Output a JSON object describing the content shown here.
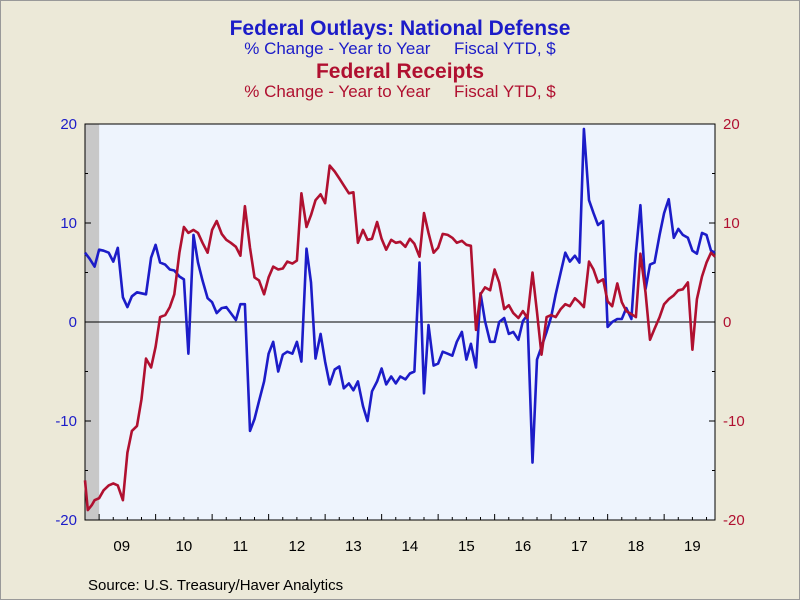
{
  "chart_data": {
    "type": "line",
    "titles": [
      {
        "title": "Federal Outlays: National Defense",
        "subtitle": "% Change - Year to Year     Fiscal YTD, $"
      },
      {
        "title": "Federal Receipts",
        "subtitle": "% Change - Year to Year     Fiscal YTD, $"
      }
    ],
    "source": "Source:  U.S. Treasury/Haver Analytics",
    "x_tick_labels": [
      "09",
      "10",
      "11",
      "12",
      "13",
      "14",
      "15",
      "16",
      "17",
      "18",
      "19"
    ],
    "x_range": [
      2008.75,
      2019.9
    ],
    "y_left": {
      "range": [
        -20,
        20
      ],
      "ticks": [
        "-20",
        "-10",
        "0",
        "10",
        "20"
      ],
      "color": "#1c1cc8"
    },
    "y_right": {
      "range": [
        -20,
        20
      ],
      "ticks": [
        "-20",
        "-10",
        "0",
        "10",
        "20"
      ],
      "color": "#b01030"
    },
    "recession_shading": [
      2008.75,
      2009.0
    ],
    "zero_line": true,
    "series": [
      {
        "name": "Federal Outlays: National Defense",
        "color": "#1c1cc8",
        "points": [
          [
            2008.75,
            7.0
          ],
          [
            2008.83,
            6.4
          ],
          [
            2008.92,
            5.6
          ],
          [
            2009.0,
            7.3
          ],
          [
            2009.08,
            7.2
          ],
          [
            2009.17,
            7.0
          ],
          [
            2009.25,
            6.1
          ],
          [
            2009.33,
            7.5
          ],
          [
            2009.42,
            2.5
          ],
          [
            2009.5,
            1.5
          ],
          [
            2009.58,
            2.6
          ],
          [
            2009.67,
            3.0
          ],
          [
            2009.75,
            2.9
          ],
          [
            2009.83,
            2.8
          ],
          [
            2009.92,
            6.5
          ],
          [
            2010.0,
            7.8
          ],
          [
            2010.08,
            6.0
          ],
          [
            2010.17,
            5.8
          ],
          [
            2010.25,
            5.3
          ],
          [
            2010.33,
            5.2
          ],
          [
            2010.42,
            4.6
          ],
          [
            2010.5,
            4.3
          ],
          [
            2010.58,
            -3.2
          ],
          [
            2010.67,
            8.8
          ],
          [
            2010.75,
            6.0
          ],
          [
            2010.83,
            4.2
          ],
          [
            2010.92,
            2.4
          ],
          [
            2011.0,
            2.0
          ],
          [
            2011.08,
            0.9
          ],
          [
            2011.17,
            1.4
          ],
          [
            2011.25,
            1.5
          ],
          [
            2011.33,
            0.9
          ],
          [
            2011.42,
            0.2
          ],
          [
            2011.5,
            1.8
          ],
          [
            2011.58,
            1.8
          ],
          [
            2011.67,
            -11.0
          ],
          [
            2011.75,
            -9.8
          ],
          [
            2011.83,
            -8.0
          ],
          [
            2011.92,
            -6.0
          ],
          [
            2012.0,
            -3.2
          ],
          [
            2012.08,
            -2.0
          ],
          [
            2012.17,
            -5.0
          ],
          [
            2012.25,
            -3.3
          ],
          [
            2012.33,
            -3.0
          ],
          [
            2012.42,
            -3.2
          ],
          [
            2012.5,
            -2.0
          ],
          [
            2012.58,
            -4.0
          ],
          [
            2012.67,
            7.4
          ],
          [
            2012.75,
            4.0
          ],
          [
            2012.83,
            -3.7
          ],
          [
            2012.92,
            -1.2
          ],
          [
            2013.0,
            -4.0
          ],
          [
            2013.08,
            -6.3
          ],
          [
            2013.17,
            -4.8
          ],
          [
            2013.25,
            -4.5
          ],
          [
            2013.33,
            -6.7
          ],
          [
            2013.42,
            -6.2
          ],
          [
            2013.5,
            -6.9
          ],
          [
            2013.58,
            -6.0
          ],
          [
            2013.67,
            -8.5
          ],
          [
            2013.75,
            -10.0
          ],
          [
            2013.83,
            -7.0
          ],
          [
            2013.92,
            -6.0
          ],
          [
            2014.0,
            -4.7
          ],
          [
            2014.08,
            -6.3
          ],
          [
            2014.17,
            -5.5
          ],
          [
            2014.25,
            -6.2
          ],
          [
            2014.33,
            -5.5
          ],
          [
            2014.42,
            -5.8
          ],
          [
            2014.5,
            -5.2
          ],
          [
            2014.58,
            -5.0
          ],
          [
            2014.67,
            6.0
          ],
          [
            2014.75,
            -7.2
          ],
          [
            2014.83,
            -0.3
          ],
          [
            2014.92,
            -4.4
          ],
          [
            2015.0,
            -4.2
          ],
          [
            2015.08,
            -3.0
          ],
          [
            2015.17,
            -3.2
          ],
          [
            2015.25,
            -3.4
          ],
          [
            2015.33,
            -2.0
          ],
          [
            2015.42,
            -1.0
          ],
          [
            2015.5,
            -3.8
          ],
          [
            2015.58,
            -2.2
          ],
          [
            2015.67,
            -4.6
          ],
          [
            2015.75,
            2.9
          ],
          [
            2015.83,
            0.1
          ],
          [
            2015.92,
            -2.0
          ],
          [
            2016.0,
            -2.0
          ],
          [
            2016.08,
            0.0
          ],
          [
            2016.17,
            0.4
          ],
          [
            2016.25,
            -1.2
          ],
          [
            2016.33,
            -1.0
          ],
          [
            2016.42,
            -1.8
          ],
          [
            2016.5,
            0.1
          ],
          [
            2016.58,
            0.7
          ],
          [
            2016.67,
            -14.2
          ],
          [
            2016.75,
            -3.8
          ],
          [
            2016.83,
            -2.5
          ],
          [
            2016.92,
            -1.0
          ],
          [
            2017.0,
            0.5
          ],
          [
            2017.08,
            2.8
          ],
          [
            2017.17,
            5.0
          ],
          [
            2017.25,
            7.0
          ],
          [
            2017.33,
            6.1
          ],
          [
            2017.42,
            6.7
          ],
          [
            2017.5,
            6.0
          ],
          [
            2017.58,
            19.5
          ],
          [
            2017.67,
            12.3
          ],
          [
            2017.75,
            11.0
          ],
          [
            2017.83,
            9.8
          ],
          [
            2017.92,
            10.2
          ],
          [
            2018.0,
            -0.5
          ],
          [
            2018.08,
            0.0
          ],
          [
            2018.17,
            0.3
          ],
          [
            2018.25,
            0.3
          ],
          [
            2018.33,
            1.4
          ],
          [
            2018.42,
            0.3
          ],
          [
            2018.5,
            7.0
          ],
          [
            2018.58,
            11.8
          ],
          [
            2018.67,
            3.3
          ],
          [
            2018.75,
            5.8
          ],
          [
            2018.83,
            6.0
          ],
          [
            2018.92,
            8.8
          ],
          [
            2019.0,
            11.0
          ],
          [
            2019.08,
            12.4
          ],
          [
            2019.17,
            8.5
          ],
          [
            2019.25,
            9.4
          ],
          [
            2019.33,
            8.8
          ],
          [
            2019.42,
            8.5
          ],
          [
            2019.5,
            7.2
          ],
          [
            2019.58,
            6.9
          ],
          [
            2019.67,
            9.0
          ],
          [
            2019.75,
            8.8
          ],
          [
            2019.83,
            7.2
          ],
          [
            2019.9,
            7.0
          ]
        ]
      },
      {
        "name": "Federal Receipts",
        "color": "#b01030",
        "points": [
          [
            2008.75,
            -16.0
          ],
          [
            2008.8,
            -19.0
          ],
          [
            2008.87,
            -18.5
          ],
          [
            2008.92,
            -18.0
          ],
          [
            2009.0,
            -17.8
          ],
          [
            2009.08,
            -17.0
          ],
          [
            2009.17,
            -16.5
          ],
          [
            2009.25,
            -16.3
          ],
          [
            2009.33,
            -16.5
          ],
          [
            2009.42,
            -18.0
          ],
          [
            2009.5,
            -13.2
          ],
          [
            2009.58,
            -11.0
          ],
          [
            2009.67,
            -10.5
          ],
          [
            2009.75,
            -7.8
          ],
          [
            2009.83,
            -3.7
          ],
          [
            2009.92,
            -4.6
          ],
          [
            2010.0,
            -2.5
          ],
          [
            2010.08,
            0.5
          ],
          [
            2010.17,
            0.7
          ],
          [
            2010.25,
            1.5
          ],
          [
            2010.33,
            2.8
          ],
          [
            2010.42,
            7.0
          ],
          [
            2010.5,
            9.6
          ],
          [
            2010.58,
            9.0
          ],
          [
            2010.67,
            9.3
          ],
          [
            2010.75,
            9.0
          ],
          [
            2010.83,
            8.0
          ],
          [
            2010.92,
            7.0
          ],
          [
            2011.0,
            9.3
          ],
          [
            2011.08,
            10.2
          ],
          [
            2011.17,
            8.9
          ],
          [
            2011.25,
            8.3
          ],
          [
            2011.33,
            8.0
          ],
          [
            2011.42,
            7.6
          ],
          [
            2011.5,
            6.7
          ],
          [
            2011.58,
            11.7
          ],
          [
            2011.67,
            7.5
          ],
          [
            2011.75,
            4.5
          ],
          [
            2011.83,
            4.2
          ],
          [
            2011.92,
            2.8
          ],
          [
            2012.0,
            4.5
          ],
          [
            2012.08,
            5.6
          ],
          [
            2012.17,
            5.3
          ],
          [
            2012.25,
            5.4
          ],
          [
            2012.33,
            6.1
          ],
          [
            2012.42,
            5.9
          ],
          [
            2012.5,
            6.2
          ],
          [
            2012.58,
            13.0
          ],
          [
            2012.67,
            9.6
          ],
          [
            2012.75,
            10.8
          ],
          [
            2012.83,
            12.3
          ],
          [
            2012.92,
            12.9
          ],
          [
            2013.0,
            12.0
          ],
          [
            2013.08,
            15.8
          ],
          [
            2013.17,
            15.2
          ],
          [
            2013.25,
            14.5
          ],
          [
            2013.33,
            13.8
          ],
          [
            2013.42,
            13.0
          ],
          [
            2013.5,
            13.1
          ],
          [
            2013.58,
            8.0
          ],
          [
            2013.67,
            9.3
          ],
          [
            2013.75,
            8.3
          ],
          [
            2013.83,
            8.4
          ],
          [
            2013.92,
            10.1
          ],
          [
            2014.0,
            8.4
          ],
          [
            2014.08,
            7.3
          ],
          [
            2014.17,
            8.3
          ],
          [
            2014.25,
            8.0
          ],
          [
            2014.33,
            8.1
          ],
          [
            2014.42,
            7.6
          ],
          [
            2014.5,
            8.4
          ],
          [
            2014.58,
            7.9
          ],
          [
            2014.67,
            6.6
          ],
          [
            2014.75,
            11.0
          ],
          [
            2014.83,
            9.0
          ],
          [
            2014.92,
            7.0
          ],
          [
            2015.0,
            7.5
          ],
          [
            2015.08,
            8.9
          ],
          [
            2015.17,
            8.8
          ],
          [
            2015.25,
            8.5
          ],
          [
            2015.33,
            8.0
          ],
          [
            2015.42,
            8.2
          ],
          [
            2015.5,
            7.8
          ],
          [
            2015.58,
            7.7
          ],
          [
            2015.67,
            -0.8
          ],
          [
            2015.75,
            2.8
          ],
          [
            2015.83,
            3.5
          ],
          [
            2015.92,
            3.2
          ],
          [
            2016.0,
            5.3
          ],
          [
            2016.08,
            4.0
          ],
          [
            2016.17,
            1.3
          ],
          [
            2016.25,
            1.7
          ],
          [
            2016.33,
            0.9
          ],
          [
            2016.42,
            0.4
          ],
          [
            2016.5,
            1.1
          ],
          [
            2016.58,
            0.4
          ],
          [
            2016.67,
            5.0
          ],
          [
            2016.75,
            1.0
          ],
          [
            2016.83,
            -3.3
          ],
          [
            2016.92,
            0.5
          ],
          [
            2017.0,
            0.7
          ],
          [
            2017.08,
            0.5
          ],
          [
            2017.17,
            1.3
          ],
          [
            2017.25,
            1.8
          ],
          [
            2017.33,
            1.6
          ],
          [
            2017.42,
            2.4
          ],
          [
            2017.5,
            2.0
          ],
          [
            2017.58,
            1.5
          ],
          [
            2017.67,
            6.1
          ],
          [
            2017.75,
            5.3
          ],
          [
            2017.83,
            4.0
          ],
          [
            2017.92,
            4.3
          ],
          [
            2018.0,
            2.1
          ],
          [
            2018.08,
            1.6
          ],
          [
            2018.17,
            3.9
          ],
          [
            2018.25,
            2.0
          ],
          [
            2018.33,
            1.1
          ],
          [
            2018.42,
            0.8
          ],
          [
            2018.5,
            0.5
          ],
          [
            2018.58,
            6.9
          ],
          [
            2018.67,
            3.0
          ],
          [
            2018.75,
            -1.8
          ],
          [
            2018.83,
            -0.7
          ],
          [
            2018.92,
            0.5
          ],
          [
            2019.0,
            1.8
          ],
          [
            2019.08,
            2.3
          ],
          [
            2019.17,
            2.7
          ],
          [
            2019.25,
            3.2
          ],
          [
            2019.33,
            3.3
          ],
          [
            2019.42,
            4.0
          ],
          [
            2019.5,
            -2.8
          ],
          [
            2019.58,
            2.3
          ],
          [
            2019.67,
            4.6
          ],
          [
            2019.75,
            6.0
          ],
          [
            2019.83,
            7.0
          ],
          [
            2019.9,
            6.6
          ]
        ]
      }
    ]
  }
}
